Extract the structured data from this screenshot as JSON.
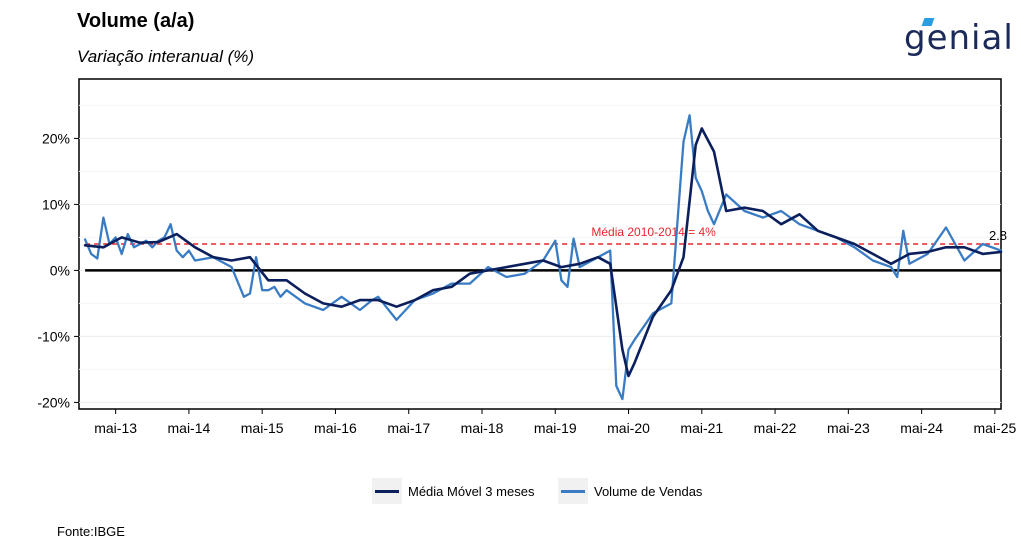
{
  "header": {
    "title": "Volume (a/a)",
    "subtitle": "Variação interanual (%)",
    "logo_text": "genial"
  },
  "footer": {
    "source": "Fonte:IBGE"
  },
  "colors": {
    "mm3": "#0b1f5c",
    "volume": "#3a7cc4",
    "reference": "#e8262b",
    "zero": "#000000"
  },
  "chart_data": {
    "type": "line",
    "x_start": "2012-11",
    "x_end": "2025-06",
    "ylim": [
      -21,
      29
    ],
    "xtick_labels": [
      "mai-13",
      "mai-14",
      "mai-15",
      "mai-16",
      "mai-17",
      "mai-18",
      "mai-19",
      "mai-20",
      "mai-21",
      "mai-22",
      "mai-23",
      "mai-24",
      "mai-25"
    ],
    "ytick_values": [
      -20,
      -10,
      0,
      10,
      20
    ],
    "ytick_labels": [
      "-20%",
      "-10%",
      "0%",
      "10%",
      "20%"
    ],
    "grid": true,
    "legend_position": "bottom",
    "reference_line": {
      "value": 4,
      "label": "Média 2010-2014 = 4%"
    },
    "last_value_label": "2.8",
    "series": [
      {
        "name": "Média Móvel 3 meses",
        "x": [
          "2012-12",
          "2013-03",
          "2013-06",
          "2013-09",
          "2013-12",
          "2014-03",
          "2014-06",
          "2014-09",
          "2014-12",
          "2015-03",
          "2015-06",
          "2015-09",
          "2015-12",
          "2016-03",
          "2016-06",
          "2016-09",
          "2016-12",
          "2017-03",
          "2017-06",
          "2017-09",
          "2017-12",
          "2018-03",
          "2018-06",
          "2018-09",
          "2018-12",
          "2019-03",
          "2019-06",
          "2019-09",
          "2019-12",
          "2020-02",
          "2020-04",
          "2020-05",
          "2020-06",
          "2020-09",
          "2020-12",
          "2021-02",
          "2021-04",
          "2021-05",
          "2021-07",
          "2021-09",
          "2021-12",
          "2022-03",
          "2022-06",
          "2022-09",
          "2022-12",
          "2023-03",
          "2023-06",
          "2023-09",
          "2023-12",
          "2024-03",
          "2024-06",
          "2024-09",
          "2024-12",
          "2025-03",
          "2025-06"
        ],
        "y": [
          3.8,
          3.5,
          5.0,
          4.2,
          4.3,
          5.5,
          3.5,
          2.0,
          1.5,
          2.0,
          -1.5,
          -1.5,
          -3.5,
          -5.0,
          -5.5,
          -4.5,
          -4.5,
          -5.5,
          -4.5,
          -3.0,
          -2.5,
          -0.5,
          0.0,
          0.5,
          1.0,
          1.5,
          0.5,
          1.0,
          2.0,
          1.0,
          -12.0,
          -16.0,
          -14.0,
          -7.0,
          -3.0,
          2.0,
          19.0,
          21.5,
          18.0,
          9.0,
          9.5,
          9.0,
          7.0,
          8.5,
          6.0,
          5.0,
          4.0,
          2.5,
          1.0,
          2.5,
          2.8,
          3.5,
          3.5,
          2.5,
          2.8
        ]
      },
      {
        "name": "Volume de Vendas",
        "x": [
          "2012-12",
          "2013-01",
          "2013-02",
          "2013-03",
          "2013-04",
          "2013-05",
          "2013-06",
          "2013-07",
          "2013-08",
          "2013-09",
          "2013-10",
          "2013-11",
          "2013-12",
          "2014-01",
          "2014-02",
          "2014-03",
          "2014-04",
          "2014-05",
          "2014-06",
          "2014-09",
          "2014-12",
          "2015-02",
          "2015-03",
          "2015-04",
          "2015-05",
          "2015-06",
          "2015-07",
          "2015-08",
          "2015-09",
          "2015-12",
          "2016-03",
          "2016-06",
          "2016-09",
          "2016-11",
          "2016-12",
          "2017-03",
          "2017-06",
          "2017-09",
          "2017-12",
          "2018-03",
          "2018-06",
          "2018-09",
          "2018-12",
          "2019-03",
          "2019-05",
          "2019-06",
          "2019-07",
          "2019-08",
          "2019-09",
          "2019-12",
          "2020-02",
          "2020-03",
          "2020-04",
          "2020-05",
          "2020-06",
          "2020-09",
          "2020-12",
          "2021-02",
          "2021-03",
          "2021-04",
          "2021-05",
          "2021-06",
          "2021-07",
          "2021-09",
          "2021-12",
          "2022-03",
          "2022-06",
          "2022-09",
          "2022-12",
          "2023-03",
          "2023-06",
          "2023-09",
          "2023-12",
          "2024-01",
          "2024-02",
          "2024-03",
          "2024-06",
          "2024-09",
          "2024-12",
          "2025-03",
          "2025-06"
        ],
        "y": [
          4.7,
          2.5,
          1.8,
          8.0,
          4.0,
          5.0,
          2.5,
          5.5,
          3.5,
          4.0,
          4.5,
          3.5,
          4.5,
          5.0,
          7.0,
          3.0,
          2.0,
          3.0,
          1.5,
          2.0,
          0.5,
          -4.0,
          -3.5,
          2.0,
          -3.0,
          -3.0,
          -2.5,
          -4.0,
          -3.0,
          -5.0,
          -6.0,
          -4.0,
          -6.0,
          -4.5,
          -4.0,
          -7.5,
          -4.5,
          -3.5,
          -2.0,
          -2.0,
          0.5,
          -1.0,
          -0.5,
          1.5,
          4.5,
          -1.5,
          -2.5,
          4.8,
          0.5,
          2.0,
          3.0,
          -17.5,
          -19.5,
          -12.0,
          -10.5,
          -6.5,
          -5.0,
          19.5,
          23.5,
          14.0,
          12.0,
          9.0,
          7.0,
          11.5,
          9.0,
          8.0,
          9.0,
          7.0,
          6.0,
          5.0,
          3.5,
          1.5,
          0.5,
          -1.0,
          6.0,
          1.0,
          2.5,
          6.5,
          1.5,
          4.0,
          3.0
        ]
      }
    ]
  },
  "legend": {
    "item1": "Média Móvel 3 meses",
    "item2": "Volume de Vendas"
  }
}
